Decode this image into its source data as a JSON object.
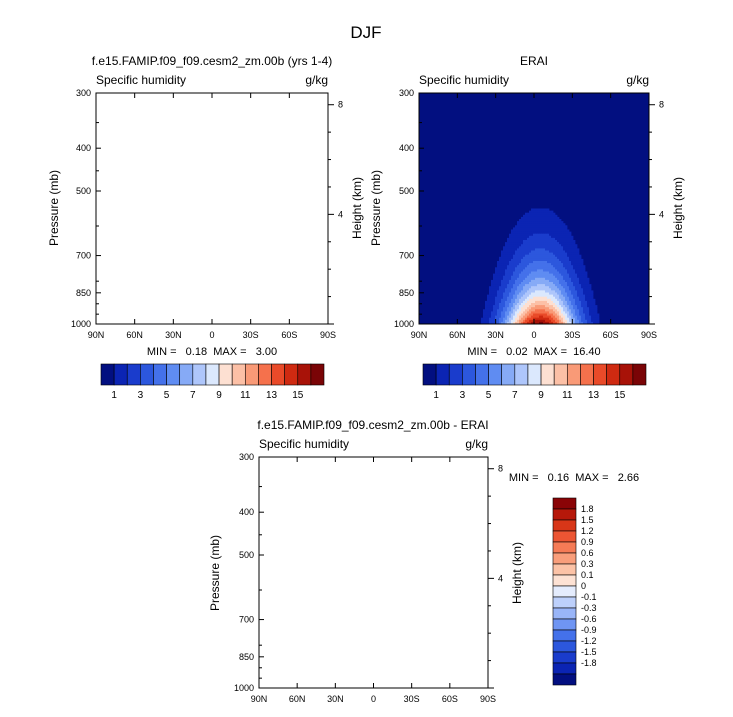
{
  "figure": {
    "title": "DJF"
  },
  "colors": {
    "sequential": [
      "#020f80",
      "#0b24b3",
      "#1a3ccc",
      "#2c57dd",
      "#4471ea",
      "#5f8cf2",
      "#86aaf6",
      "#aec6fb",
      "#dbe8fd",
      "#fde0d2",
      "#fcc0a6",
      "#f99a77",
      "#f5714c",
      "#e94a29",
      "#cf2a11",
      "#a81208",
      "#7a0406"
    ],
    "diverging": [
      "#020f80",
      "#0b24b3",
      "#1a3ccc",
      "#2c57dd",
      "#4471ea",
      "#6f95f3",
      "#99b5f8",
      "#bdd0fb",
      "#e4ecfd",
      "#fde2d4",
      "#fcc3a7",
      "#f99e7b",
      "#f57b56",
      "#ec5533",
      "#d83618",
      "#b6180a",
      "#8a0406"
    ]
  },
  "chart_data": [
    {
      "type": "heatmap",
      "title": "f.e15.FAMIP.f09_f09.cesm2_zm.00b (yrs 1-4)",
      "subtitle_left": "Specific humidity",
      "subtitle_right": "g/kg",
      "ylabel": "Pressure (mb)",
      "ylabel_right": "Height (km)",
      "xticks": [
        "90N",
        "60N",
        "30N",
        "0",
        "30S",
        "60S",
        "90S"
      ],
      "yticks": [
        "300",
        "400",
        "500",
        "700",
        "850",
        "1000"
      ],
      "right_ticks": [
        "8",
        "4"
      ],
      "xlim": [
        90,
        -90
      ],
      "ylim": [
        1000,
        300
      ],
      "stats": "MIN =   0.18  MAX =   3.00",
      "levels": [
        1,
        2,
        3,
        4,
        5,
        6,
        7,
        8,
        9,
        10,
        11,
        12,
        13,
        14,
        15,
        16
      ],
      "colorbar_labels": [
        "1",
        "3",
        "5",
        "7",
        "9",
        "11",
        "13",
        "15"
      ],
      "filled": false
    },
    {
      "type": "heatmap",
      "title": "ERAI",
      "subtitle_left": "Specific humidity",
      "subtitle_right": "g/kg",
      "ylabel": "Pressure (mb)",
      "ylabel_right": "Height (km)",
      "xticks": [
        "90N",
        "60N",
        "30N",
        "0",
        "30S",
        "60S",
        "90S"
      ],
      "yticks": [
        "300",
        "400",
        "500",
        "700",
        "850",
        "1000"
      ],
      "right_ticks": [
        "8",
        "4"
      ],
      "xlim": [
        90,
        -90
      ],
      "ylim": [
        1000,
        300
      ],
      "stats": "MIN =   0.02  MAX =  16.40",
      "levels": [
        1,
        2,
        3,
        4,
        5,
        6,
        7,
        8,
        9,
        10,
        11,
        12,
        13,
        14,
        15,
        16
      ],
      "colorbar_labels": [
        "1",
        "3",
        "5",
        "7",
        "9",
        "11",
        "13",
        "15"
      ],
      "filled": true,
      "field_max": 16.4,
      "field_max_lat": -5,
      "field_max_pressure": 1000
    },
    {
      "type": "heatmap",
      "title": "f.e15.FAMIP.f09_f09.cesm2_zm.00b - ERAI",
      "subtitle_left": "Specific humidity",
      "subtitle_right": "g/kg",
      "ylabel": "Pressure (mb)",
      "ylabel_right": "Height (km)",
      "xticks": [
        "90N",
        "60N",
        "30N",
        "0",
        "30S",
        "60S",
        "90S"
      ],
      "yticks": [
        "300",
        "400",
        "500",
        "700",
        "850",
        "1000"
      ],
      "right_ticks": [
        "8",
        "4"
      ],
      "xlim": [
        90,
        -90
      ],
      "ylim": [
        1000,
        300
      ],
      "stats": "MIN =   0.16  MAX =   2.66",
      "colorbar_labels": [
        "1.8",
        "1.5",
        "1.2",
        "0.9",
        "0.6",
        "0.3",
        "0.1",
        "0",
        "-0.1",
        "-0.3",
        "-0.6",
        "-0.9",
        "-1.2",
        "-1.5",
        "-1.8"
      ],
      "filled": false
    }
  ]
}
